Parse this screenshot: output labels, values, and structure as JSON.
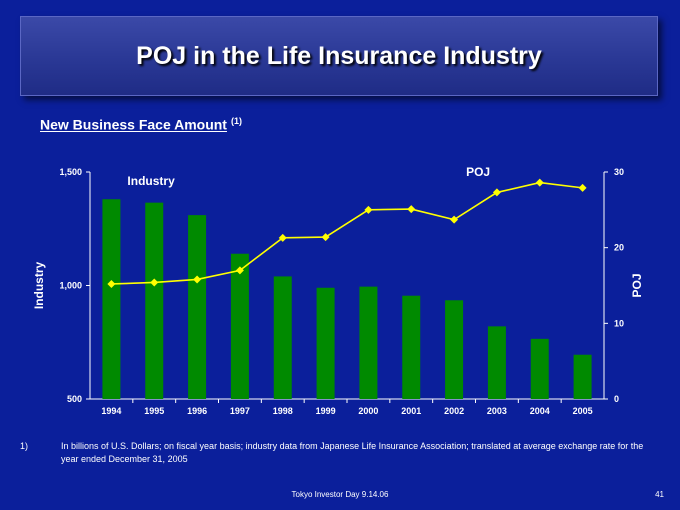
{
  "slide": {
    "title": "POJ in the Life Insurance Industry",
    "subtitle": "New Business Face Amount",
    "subtitle_superscript": "(1)",
    "footnote_number": "1)",
    "footnote_text": "In billions of U.S. Dollars; on fiscal year basis; industry data from Japanese Life Insurance Association; translated at  average exchange rate for the year ended December 31, 2005",
    "footer": "Tokyo Investor Day 9.14.06",
    "page_number": "41"
  },
  "colors": {
    "background": "#0b1f9b",
    "bar": "#008a00",
    "line": "#ffff00",
    "text": "#ffffff"
  },
  "chart_data": {
    "type": "bar",
    "categories": [
      "1994",
      "1995",
      "1996",
      "1997",
      "1998",
      "1999",
      "2000",
      "2001",
      "2002",
      "2003",
      "2004",
      "2005"
    ],
    "series": [
      {
        "name": "Industry",
        "type": "bar",
        "axis": "left",
        "values": [
          1380,
          1365,
          1310,
          1140,
          1040,
          990,
          995,
          955,
          935,
          820,
          765,
          695
        ]
      },
      {
        "name": "POJ",
        "type": "line",
        "axis": "right",
        "values": [
          15.2,
          15.4,
          15.8,
          17.0,
          21.3,
          21.4,
          25.0,
          25.1,
          23.7,
          27.3,
          28.6,
          27.9
        ]
      }
    ],
    "ylabel": "Industry",
    "y2label": "POJ",
    "ylim": [
      500,
      1500
    ],
    "yticks": [
      "500",
      "1,000",
      "1,500"
    ],
    "y2lim": [
      0,
      30
    ],
    "y2ticks": [
      "0",
      "10",
      "20",
      "30"
    ],
    "grid": false
  }
}
